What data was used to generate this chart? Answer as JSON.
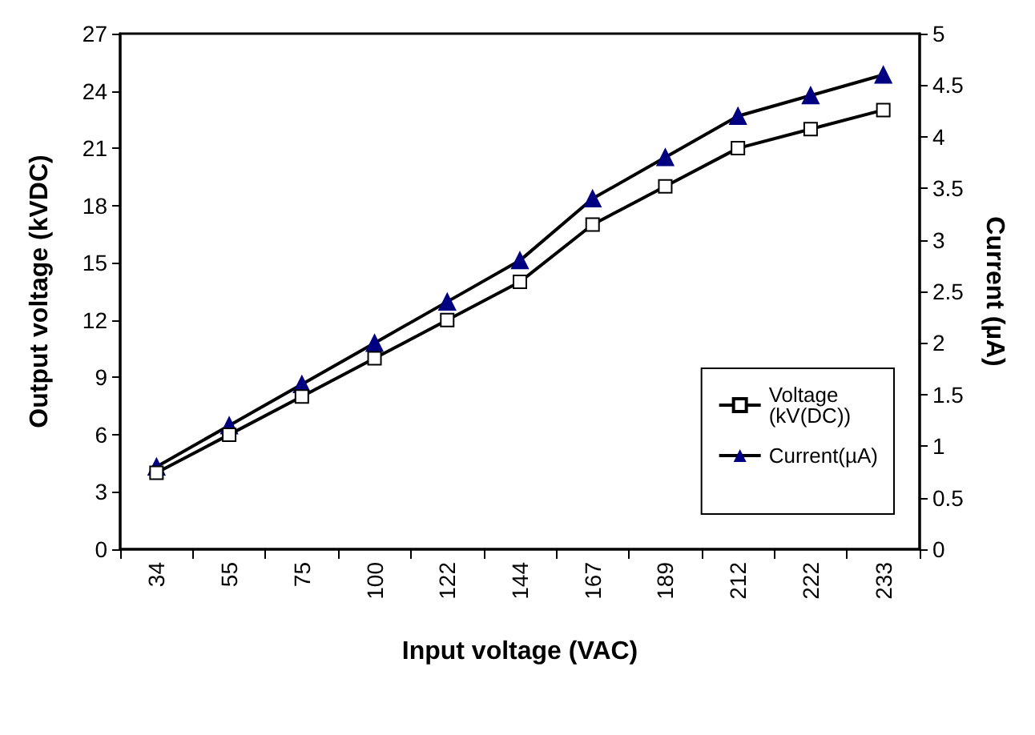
{
  "chart_data": {
    "type": "line",
    "xlabel": "Input voltage (VAC)",
    "ylabel": "Output voltage (kVDC)",
    "y2label": "Current (µA)",
    "categories": [
      "34",
      "55",
      "75",
      "100",
      "122",
      "144",
      "167",
      "189",
      "212",
      "222",
      "233"
    ],
    "series": [
      {
        "name": "Voltage (kV(DC))",
        "color": "#000000",
        "marker": "square",
        "values": [
          4,
          6,
          8,
          10,
          12,
          14,
          17,
          19,
          21,
          22,
          23
        ]
      },
      {
        "name": "Current(µA)",
        "color": "#000080",
        "marker": "triangle",
        "axis": "y2",
        "values": [
          0.8,
          1.2,
          1.6,
          2.0,
          2.4,
          2.8,
          3.4,
          3.8,
          4.2,
          4.4,
          4.6
        ]
      }
    ],
    "ylim": [
      0,
      27
    ],
    "yticks": [
      0,
      3,
      6,
      9,
      12,
      15,
      18,
      21,
      24,
      27
    ],
    "y2lim": [
      0,
      5
    ],
    "y2ticks": [
      0,
      0.5,
      1,
      1.5,
      2,
      2.5,
      3,
      3.5,
      4,
      4.5,
      5
    ],
    "grid": false,
    "legend": "right"
  }
}
